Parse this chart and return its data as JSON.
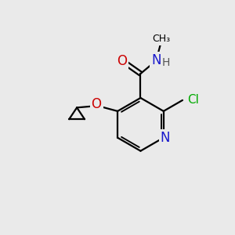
{
  "background_color": "#eaeaea",
  "atom_colors": {
    "C": "#000000",
    "N": "#1919cc",
    "O": "#cc0000",
    "Cl": "#00aa00",
    "H": "#555555"
  },
  "bond_color": "#000000",
  "bond_width": 1.6,
  "figsize": [
    3.0,
    3.0
  ],
  "dpi": 100
}
